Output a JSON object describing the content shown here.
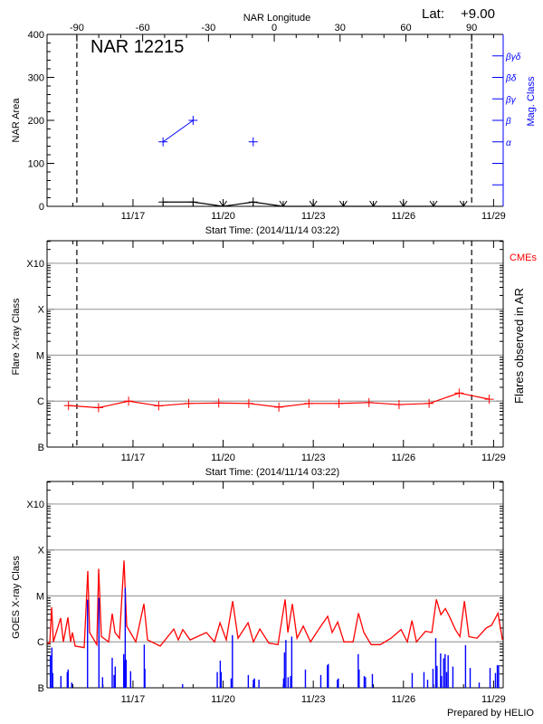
{
  "lat_label": "Lat:",
  "lat_value": "+9.00",
  "footer": "Prepared by HELIO",
  "colors": {
    "area": "#000000",
    "mag_class": "#0000ff",
    "flare": "#ff0000",
    "cme_label": "#ff0000",
    "goes_flux": "#ff0000",
    "goes_events": "#0000ff",
    "grid": "#a0a0a0",
    "limb_lines": "#000000"
  },
  "chart_data": [
    {
      "type": "line",
      "title": "NAR 12215",
      "ylabel": "NAR Area",
      "y2label": "Mag. Class",
      "x2label": "NAR Longitude",
      "xlabel": "Start Time: (2014/11/14 03:22)",
      "xlim": [
        "11/14 03:22",
        "11/29 07:40"
      ],
      "x_tick_labels": [
        "11/17",
        "11/20",
        "11/23",
        "11/26",
        "11/29"
      ],
      "ylim": [
        0,
        400
      ],
      "y_ticks": [
        "0",
        "100",
        "200",
        "300",
        "400"
      ],
      "y2lim": [
        0,
        8
      ],
      "y2_tick_labels": [
        "",
        "",
        "α",
        "β",
        "βγ",
        "βδ",
        "βγδ"
      ],
      "x2_ticks": [
        "-90",
        "-60",
        "-30",
        "0",
        "30",
        "60",
        "90"
      ],
      "longitude_reference": {
        "minus90": "11/15 03:10",
        "plus90": "11/28 06:30"
      },
      "limb_lines": [
        -90,
        90
      ],
      "area": {
        "times": [
          "11/18 00:00",
          "11/19 00:00",
          "11/20 00:00",
          "11/21 00:00",
          "11/22 00:00",
          "11/23 00:00",
          "11/24 00:00",
          "11/25 00:00",
          "11/26 00:00",
          "11/27 00:00",
          "11/28 00:00"
        ],
        "values": [
          10,
          10,
          0,
          10,
          0,
          0,
          0,
          0,
          0,
          0,
          0
        ]
      },
      "mag_class": {
        "times": [
          "11/18 00:00",
          "11/19 00:00",
          "11/21 00:00"
        ],
        "classes": [
          "α",
          "β",
          "α"
        ]
      }
    },
    {
      "type": "line",
      "ylabel": "Flare X-ray Class",
      "y2label": "Flares observed in AR",
      "legend": "CMEs",
      "xlabel": "Start Time: (2014/11/14 03:22)",
      "xlim": [
        "11/14 03:22",
        "11/29 07:40"
      ],
      "x_tick_labels": [
        "11/17",
        "11/20",
        "11/23",
        "11/26",
        "11/29"
      ],
      "yscale": "log",
      "ylim": [
        1e-07,
        0.0031
      ],
      "y_ticks": [
        {
          "label": "B",
          "value": 1e-07
        },
        {
          "label": "C",
          "value": 1e-06
        },
        {
          "label": "M",
          "value": 1e-05
        },
        {
          "label": "X",
          "value": 0.0001
        },
        {
          "label": "X10",
          "value": 0.001
        }
      ],
      "grid": true,
      "limb_lines": [
        -90,
        90
      ],
      "times": [
        "11/14 20:30",
        "11/15 20:30",
        "11/16 20:30",
        "11/17 20:30",
        "11/18 20:30",
        "11/19 20:30",
        "11/20 20:30",
        "11/21 20:30",
        "11/22 20:30",
        "11/23 20:30",
        "11/24 20:30",
        "11/25 20:30",
        "11/26 20:30",
        "11/27 20:30",
        "11/28 20:30"
      ],
      "values": [
        8e-07,
        7.2e-07,
        1e-06,
        7.9e-07,
        8.9e-07,
        9.1e-07,
        8.9e-07,
        7.4e-07,
        8.9e-07,
        8.9e-07,
        9.3e-07,
        8.4e-07,
        8.9e-07,
        1.5e-06,
        1.1e-06
      ]
    },
    {
      "type": "line",
      "ylabel": "GOES X-ray Class",
      "xlim": [
        "11/14 03:22",
        "11/29 07:40"
      ],
      "x_tick_labels": [
        "11/17",
        "11/20",
        "11/23",
        "11/26",
        "11/29"
      ],
      "yscale": "log",
      "ylim": [
        1e-07,
        0.0031
      ],
      "y_ticks": [
        {
          "label": "B",
          "value": 1e-07
        },
        {
          "label": "C",
          "value": 1e-06
        },
        {
          "label": "M",
          "value": 1e-05
        },
        {
          "label": "X",
          "value": 0.0001
        },
        {
          "label": "X10",
          "value": 0.001
        }
      ],
      "grid": true,
      "flux": [
        [
          "11/14 03:22",
          9.4e-07
        ],
        [
          "11/14 05:32",
          9.4e-07
        ],
        [
          "11/14 07:00",
          5.7e-06
        ],
        [
          "11/14 08:26",
          1e-06
        ],
        [
          "11/14 14:13",
          3.3e-06
        ],
        [
          "11/14 16:23",
          1e-06
        ],
        [
          "11/14 20:00",
          3.4e-06
        ],
        [
          "11/14 22:10",
          1e-06
        ],
        [
          "11/14 23:37",
          1.6e-06
        ],
        [
          "11/15 01:47",
          8.1e-07
        ],
        [
          "11/15 09:01",
          7.5e-07
        ],
        [
          "11/15 11:54",
          3.5e-05
        ],
        [
          "11/15 13:21",
          1.6e-06
        ],
        [
          "11/15 19:08",
          8.7e-07
        ],
        [
          "11/15 20:35",
          3.9e-05
        ],
        [
          "11/15 22:45",
          1.3e-06
        ],
        [
          "11/16 04:32",
          1e-06
        ],
        [
          "11/16 07:26",
          4.1e-06
        ],
        [
          "11/16 09:36",
          1.6e-06
        ],
        [
          "11/16 13:13",
          1.2e-06
        ],
        [
          "11/16 16:50",
          5.9e-05
        ],
        [
          "11/16 19:00",
          2.2e-06
        ],
        [
          "11/17 02:14",
          1e-06
        ],
        [
          "11/17 08:44",
          6.7e-06
        ],
        [
          "11/17 11:38",
          1.1e-06
        ],
        [
          "11/17 21:45",
          8.1e-07
        ],
        [
          "11/18 08:36",
          1.9e-06
        ],
        [
          "11/18 12:12",
          1.1e-06
        ],
        [
          "11/18 15:48",
          1.85e-06
        ],
        [
          "11/18 21:36",
          1.1e-06
        ],
        [
          "11/19 10:36",
          1.6e-06
        ],
        [
          "11/19 17:06",
          1e-06
        ],
        [
          "11/19 21:30",
          2.6e-06
        ],
        [
          "11/20 02:30",
          1.1e-06
        ],
        [
          "11/20 07:36",
          7.7e-06
        ],
        [
          "11/20 11:54",
          1.2e-06
        ],
        [
          "11/20 19:54",
          2.6e-06
        ],
        [
          "11/21 00:12",
          1e-06
        ],
        [
          "11/21 05:18",
          1.9e-06
        ],
        [
          "11/21 12:30",
          9.4e-07
        ],
        [
          "11/21 19:48",
          8.7e-07
        ],
        [
          "11/22 01:30",
          8.4e-06
        ],
        [
          "11/22 03:42",
          1.6e-06
        ],
        [
          "11/22 07:18",
          6.7e-06
        ],
        [
          "11/22 11:00",
          1.2e-06
        ],
        [
          "11/22 16:00",
          2.2e-06
        ],
        [
          "11/22 21:48",
          1e-06
        ],
        [
          "11/23 05:00",
          2e-06
        ],
        [
          "11/23 11:30",
          3.6e-06
        ],
        [
          "11/23 15:06",
          1.6e-06
        ],
        [
          "11/23 19:30",
          2.7e-06
        ],
        [
          "11/24 00:30",
          1e-06
        ],
        [
          "11/24 07:48",
          1e-06
        ],
        [
          "11/24 12:06",
          4.2e-06
        ],
        [
          "11/24 16:24",
          1.6e-06
        ],
        [
          "11/24 22:12",
          8.7e-07
        ],
        [
          "11/25 05:30",
          8.7e-07
        ],
        [
          "11/25 14:06",
          1.2e-06
        ],
        [
          "11/25 22:06",
          1.85e-06
        ],
        [
          "11/26 03:06",
          1e-06
        ],
        [
          "11/26 06:48",
          2.9e-06
        ],
        [
          "11/26 10:24",
          1e-06
        ],
        [
          "11/26 17:36",
          1.7e-06
        ],
        [
          "11/26 22:42",
          1.6e-06
        ],
        [
          "11/27 02:18",
          8.4e-06
        ],
        [
          "11/27 05:54",
          3.9e-06
        ],
        [
          "11/27 09:30",
          5.3e-06
        ],
        [
          "11/27 13:06",
          3.4e-06
        ],
        [
          "11/27 17:30",
          1.85e-06
        ],
        [
          "11/27 21:06",
          1.3e-06
        ],
        [
          "11/28 00:42",
          7.7e-06
        ],
        [
          "11/28 04:18",
          1.3e-06
        ],
        [
          "11/28 10:48",
          1.2e-06
        ],
        [
          "11/28 18:06",
          2e-06
        ],
        [
          "11/28 22:24",
          2.3e-06
        ],
        [
          "11/29 03:30",
          4.2e-06
        ],
        [
          "11/29 07:06",
          1.1e-06
        ]
      ],
      "flare_events": [
        [
          "11/14 06:03",
          5.1e-07
        ],
        [
          "11/14 07:12",
          7.5e-07
        ],
        [
          "11/14 07:56",
          2.1e-07
        ],
        [
          "11/14 14:26",
          1.8e-07
        ],
        [
          "11/14 19:30",
          2.2e-07
        ],
        [
          "11/14 20:12",
          2.5e-07
        ],
        [
          "11/14 23:06",
          1.3e-07
        ],
        [
          "11/15 11:42",
          8.3e-06
        ],
        [
          "11/15 20:48",
          9e-06
        ],
        [
          "11/15 23:42",
          1.7e-07
        ],
        [
          "11/16 07:24",
          4.5e-07
        ],
        [
          "11/16 08:54",
          1.9e-07
        ],
        [
          "11/16 09:48",
          2.9e-07
        ],
        [
          "11/16 16:36",
          5.4e-07
        ],
        [
          "11/16 17:03",
          3.9e-07
        ],
        [
          "11/16 17:48",
          1.5e-05
        ],
        [
          "11/16 18:30",
          4.1e-07
        ],
        [
          "11/16 22:06",
          2.3e-07
        ],
        [
          "11/17 09:00",
          8.7e-07
        ],
        [
          "11/17 09:30",
          2.6e-07
        ],
        [
          "11/18 15:36",
          1.2e-07
        ],
        [
          "11/19 19:18",
          2.2e-07
        ],
        [
          "11/19 21:42",
          3.9e-07
        ],
        [
          "11/19 22:24",
          2.2e-07
        ],
        [
          "11/20 06:24",
          1.6e-07
        ],
        [
          "11/20 07:24",
          1.4e-06
        ],
        [
          "11/20 20:06",
          1.9e-07
        ],
        [
          "11/21 00:12",
          1.5e-07
        ],
        [
          "11/21 01:00",
          1.6e-07
        ],
        [
          "11/21 04:36",
          1.5e-07
        ],
        [
          "11/22 00:18",
          1.6e-07
        ],
        [
          "11/22 01:00",
          5.9e-07
        ],
        [
          "11/22 02:06",
          1.1e-06
        ],
        [
          "11/22 03:54",
          1.7e-07
        ],
        [
          "11/22 05:54",
          1.8e-07
        ],
        [
          "11/22 06:48",
          1.3e-06
        ],
        [
          "11/22 17:42",
          2.5e-07
        ],
        [
          "11/23 06:00",
          1.9e-07
        ],
        [
          "11/23 11:18",
          3.1e-07
        ],
        [
          "11/23 12:00",
          3.3e-07
        ],
        [
          "11/23 19:18",
          1.5e-07
        ],
        [
          "11/23 20:00",
          1.6e-07
        ],
        [
          "11/24 11:54",
          5.4e-07
        ],
        [
          "11/24 12:36",
          2.5e-07
        ],
        [
          "11/24 16:42",
          1.8e-07
        ],
        [
          "11/24 17:42",
          1.7e-07
        ],
        [
          "11/24 23:12",
          2e-07
        ],
        [
          "11/26 07:00",
          2.1e-07
        ],
        [
          "11/26 16:24",
          2.2e-07
        ],
        [
          "11/26 19:18",
          1.5e-07
        ],
        [
          "11/26 23:36",
          2.6e-07
        ],
        [
          "11/27 01:48",
          1.2e-06
        ],
        [
          "11/27 02:48",
          3e-07
        ],
        [
          "11/27 05:42",
          5.6e-07
        ],
        [
          "11/27 06:24",
          1.8e-07
        ],
        [
          "11/27 08:06",
          4.4e-07
        ],
        [
          "11/27 09:18",
          5.4e-07
        ],
        [
          "11/27 10:30",
          2.2e-07
        ],
        [
          "11/27 11:42",
          5.1e-07
        ],
        [
          "11/27 15:30",
          2.9e-07
        ],
        [
          "11/28 01:36",
          8.5e-07
        ],
        [
          "11/28 05:18",
          2.7e-07
        ],
        [
          "11/28 12:30",
          1.3e-07
        ],
        [
          "11/28 21:12",
          2.7e-07
        ],
        [
          "11/29 01:30",
          2.1e-07
        ],
        [
          "11/29 03:00",
          3.1e-07
        ],
        [
          "11/29 04:00",
          3.1e-07
        ]
      ]
    }
  ]
}
